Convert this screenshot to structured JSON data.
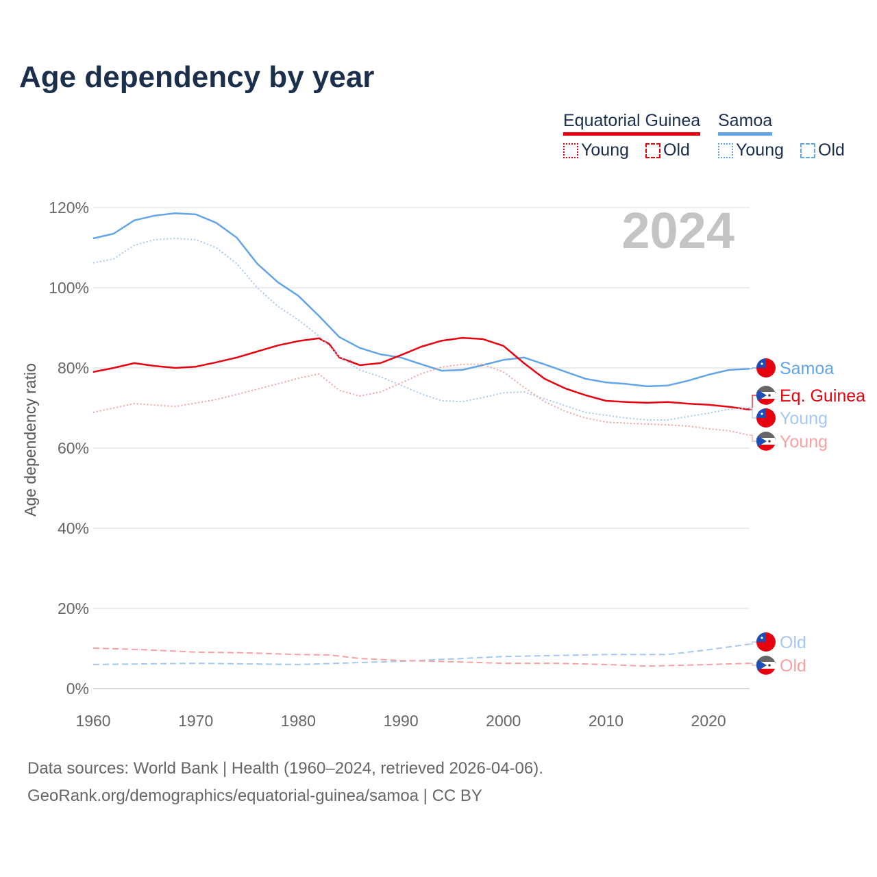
{
  "title": "Age dependency by year",
  "legend": {
    "groups": [
      {
        "name": "Equatorial Guinea",
        "color": "#e8000f",
        "light": "#f7a1a1",
        "items": [
          "Young",
          "Old"
        ]
      },
      {
        "name": "Samoa",
        "color": "#62a4e8",
        "light": "#a6c8f0",
        "items": [
          "Young",
          "Old"
        ]
      }
    ]
  },
  "year_watermark": "2024",
  "footer": {
    "line1": "Data sources: World Bank | Health (1960–2024, retrieved 2026-04-06).",
    "line2": "GeoRank.org/demographics/equatorial-guinea/samoa | CC BY"
  },
  "chart_data": {
    "type": "line",
    "title": "Age dependency by year",
    "xlabel": "",
    "ylabel": "Age dependency ratio",
    "xlim": [
      1960,
      2024
    ],
    "ylim": [
      0,
      120
    ],
    "xticks": [
      1960,
      1970,
      1980,
      1990,
      2000,
      2010,
      2020
    ],
    "yticks": [
      0,
      20,
      40,
      60,
      80,
      100,
      120
    ],
    "ytick_labels": [
      "0%",
      "20%",
      "40%",
      "60%",
      "80%",
      "100%",
      "120%"
    ],
    "grid": true,
    "legend_position": "top-right",
    "series": [
      {
        "name": "Samoa",
        "end_label": "Samoa",
        "country": "samoa",
        "style": "solid",
        "color": "#62a4e8",
        "x": [
          1960,
          1962,
          1964,
          1966,
          1968,
          1970,
          1972,
          1974,
          1976,
          1978,
          1980,
          1982,
          1984,
          1986,
          1988,
          1990,
          1992,
          1994,
          1996,
          1998,
          2000,
          2002,
          2004,
          2006,
          2008,
          2010,
          2012,
          2014,
          2016,
          2018,
          2020,
          2022,
          2024
        ],
        "y": [
          112.3,
          113.5,
          116.8,
          118,
          118.6,
          118.3,
          116.2,
          112.5,
          106,
          101.4,
          98,
          93,
          87.7,
          85,
          83.4,
          82.6,
          80.9,
          79.3,
          79.5,
          80.7,
          82,
          82.6,
          80.9,
          79.1,
          77.3,
          76.4,
          76,
          75.4,
          75.6,
          76.8,
          78.3,
          79.5,
          79.8
        ]
      },
      {
        "name": "Equatorial Guinea",
        "end_label": "Eq. Guinea",
        "country": "eq-guinea",
        "style": "solid",
        "color": "#e8000f",
        "x": [
          1960,
          1962,
          1964,
          1966,
          1968,
          1970,
          1972,
          1974,
          1976,
          1978,
          1980,
          1982,
          1983,
          1984,
          1986,
          1988,
          1990,
          1992,
          1994,
          1996,
          1998,
          2000,
          2002,
          2004,
          2006,
          2008,
          2010,
          2012,
          2014,
          2016,
          2018,
          2020,
          2022,
          2024
        ],
        "y": [
          79,
          80,
          81.2,
          80.5,
          80,
          80.3,
          81.4,
          82.6,
          84.1,
          85.6,
          86.7,
          87.4,
          86,
          82.6,
          80.7,
          81.2,
          83.2,
          85.3,
          86.8,
          87.5,
          87.2,
          85.5,
          81.2,
          77.3,
          74.9,
          73.2,
          71.8,
          71.5,
          71.3,
          71.5,
          71.1,
          70.8,
          70.3,
          69.6
        ]
      },
      {
        "name": "Samoa Young",
        "end_label": "Young",
        "country": "samoa",
        "style": "dotted",
        "color": "#a6c8f0",
        "x": [
          1960,
          1962,
          1964,
          1966,
          1968,
          1970,
          1972,
          1974,
          1976,
          1978,
          1980,
          1982,
          1984,
          1986,
          1988,
          1990,
          1992,
          1994,
          1996,
          1998,
          2000,
          2002,
          2004,
          2006,
          2008,
          2010,
          2012,
          2014,
          2016,
          2018,
          2020,
          2022,
          2024
        ],
        "y": [
          106.2,
          107.2,
          110.6,
          112,
          112.3,
          112,
          110,
          106,
          100,
          95.4,
          92,
          88,
          82.9,
          79.5,
          77.8,
          75.7,
          73.5,
          71.8,
          71.6,
          72.6,
          73.8,
          74,
          72.3,
          70.6,
          68.9,
          68.2,
          67.5,
          67,
          67,
          67.9,
          68.7,
          69.7,
          70
        ]
      },
      {
        "name": "Equatorial Guinea Young",
        "end_label": "Young",
        "country": "eq-guinea",
        "style": "dotted",
        "color": "#f7a1a1",
        "x": [
          1960,
          1964,
          1968,
          1972,
          1976,
          1980,
          1982,
          1984,
          1986,
          1988,
          1990,
          1992,
          1994,
          1996,
          1998,
          2000,
          2002,
          2004,
          2006,
          2008,
          2010,
          2012,
          2016,
          2018,
          2020,
          2022,
          2024
        ],
        "y": [
          68.9,
          71.1,
          70.4,
          72.1,
          74.7,
          77.4,
          78.5,
          74.4,
          73,
          74,
          76.2,
          78.6,
          80.2,
          80.9,
          80.9,
          79,
          75.2,
          71.6,
          69.2,
          67.5,
          66.5,
          66.2,
          65.8,
          65.5,
          64.8,
          64.3,
          63.2
        ]
      },
      {
        "name": "Samoa Old",
        "end_label": "Old",
        "country": "samoa",
        "style": "dashed",
        "color": "#a6c8f0",
        "x": [
          1960,
          1970,
          1980,
          1990,
          2000,
          2010,
          2016,
          2020,
          2024
        ],
        "y": [
          6,
          6.3,
          6,
          6.8,
          8,
          8.5,
          8.5,
          9.7,
          11.1
        ]
      },
      {
        "name": "Equatorial Guinea Old",
        "end_label": "Old",
        "country": "eq-guinea",
        "style": "dashed",
        "color": "#f7a1a1",
        "x": [
          1960,
          1965,
          1970,
          1975,
          1980,
          1983,
          1986,
          1990,
          1995,
          2000,
          2005,
          2010,
          2014,
          2020,
          2024
        ],
        "y": [
          10.1,
          9.7,
          9.1,
          8.9,
          8.5,
          8.4,
          7.5,
          7,
          6.7,
          6.3,
          6.3,
          6,
          5.6,
          6,
          6.3
        ]
      }
    ]
  }
}
